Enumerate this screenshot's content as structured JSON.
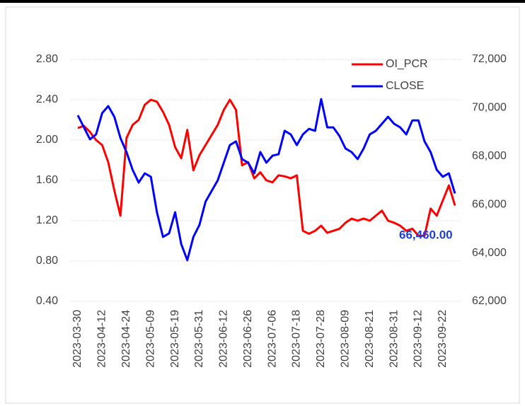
{
  "chart_data": {
    "type": "line",
    "categories": [
      "2023-03-30",
      null,
      null,
      null,
      "2023-04-12",
      null,
      null,
      null,
      "2023-04-24",
      null,
      null,
      null,
      "2023-05-09",
      null,
      null,
      null,
      "2023-05-19",
      null,
      null,
      null,
      "2023-05-31",
      null,
      null,
      null,
      "2023-06-12",
      null,
      null,
      null,
      "2023-06-26",
      null,
      null,
      null,
      "2023-07-06",
      null,
      null,
      null,
      "2023-07-18",
      null,
      null,
      null,
      "2023-07-28",
      null,
      null,
      null,
      "2023-08-09",
      null,
      null,
      null,
      "2023-08-21",
      null,
      null,
      null,
      "2023-08-31",
      null,
      null,
      null,
      "2023-09-12",
      null,
      null,
      null,
      "2023-09-22",
      null,
      null
    ],
    "series": [
      {
        "name": "OI_PCR",
        "color": "#ff0000",
        "values": [
          2.12,
          2.14,
          2.08,
          2.0,
          1.95,
          1.78,
          1.5,
          1.25,
          2.02,
          2.15,
          2.2,
          2.35,
          2.4,
          2.38,
          2.28,
          2.15,
          1.93,
          1.82,
          2.1,
          1.7,
          1.85,
          1.95,
          2.05,
          2.15,
          2.3,
          2.4,
          2.3,
          1.75,
          1.78,
          1.62,
          1.68,
          1.6,
          1.58,
          1.65,
          1.64,
          1.62,
          1.65,
          1.1,
          1.07,
          1.1,
          1.15,
          1.08,
          1.1,
          1.12,
          1.18,
          1.22,
          1.2,
          1.22,
          1.2,
          1.25,
          1.3,
          1.2,
          1.18,
          1.15,
          1.1,
          1.12,
          1.05,
          1.05,
          1.32,
          1.25,
          1.4,
          1.55,
          1.35
        ]
      },
      {
        "name": "CLOSE",
        "color": "#0000ff",
        "axis": "y2",
        "values": [
          69690,
          69190,
          68700,
          68900,
          69780,
          70070,
          69630,
          68750,
          68170,
          67440,
          66910,
          67290,
          67150,
          65680,
          64660,
          64810,
          65680,
          64370,
          63700,
          64660,
          65160,
          66120,
          66560,
          67000,
          67730,
          68460,
          68610,
          67880,
          67730,
          67290,
          68170,
          67730,
          68020,
          68080,
          69050,
          68900,
          68460,
          68900,
          69130,
          69050,
          70360,
          69190,
          69190,
          68840,
          68320,
          68170,
          67880,
          68320,
          68900,
          69050,
          69340,
          69630,
          69340,
          69190,
          68900,
          69480,
          69480,
          68610,
          68170,
          67440,
          67150,
          67290,
          66460
        ]
      }
    ],
    "annotation": "66,460.00",
    "ylim": [
      0.4,
      2.8
    ],
    "yticks": [
      {
        "value": 0.4,
        "label": "0.40"
      },
      {
        "value": 0.8,
        "label": "0.80"
      },
      {
        "value": 1.2,
        "label": "1.20"
      },
      {
        "value": 1.6,
        "label": "1.60"
      },
      {
        "value": 2.0,
        "label": "2.00"
      },
      {
        "value": 2.4,
        "label": "2.40"
      },
      {
        "value": 2.8,
        "label": "2.80"
      }
    ],
    "y2lim": [
      62000,
      72000
    ],
    "y2ticks": [
      {
        "value": 62000,
        "label": "62,000"
      },
      {
        "value": 64000,
        "label": "64,000"
      },
      {
        "value": 66000,
        "label": "66,000"
      },
      {
        "value": 68000,
        "label": "68,000"
      },
      {
        "value": 70000,
        "label": "70,000"
      },
      {
        "value": 72000,
        "label": "72,000"
      }
    ],
    "grid": true,
    "legend": "upper right"
  }
}
